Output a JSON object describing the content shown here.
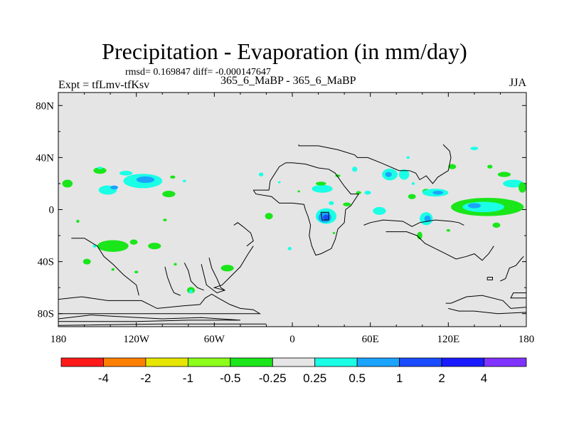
{
  "header": {
    "title": "Precipitation - Evaporation (in mm/day)",
    "stats": "rmsd= 0.169847 diff= -0.000147647",
    "experiment": "Expt = tfLmv-tfKsv",
    "case": "365_6_MaBP - 365_6_MaBP",
    "season": "JJA"
  },
  "colors": {
    "background": "#e5e5e5",
    "coast": "#000000"
  },
  "chart_data": {
    "type": "heatmap",
    "title": "Precipitation - Evaporation (in mm/day)",
    "xlim": [
      -180,
      180
    ],
    "ylim": [
      -90,
      90
    ],
    "x_ticks": [
      {
        "value": -180,
        "label": "180"
      },
      {
        "value": -120,
        "label": "120W"
      },
      {
        "value": -60,
        "label": "60W"
      },
      {
        "value": 0,
        "label": "0"
      },
      {
        "value": 60,
        "label": "60E"
      },
      {
        "value": 120,
        "label": "120E"
      },
      {
        "value": 180,
        "label": "180"
      }
    ],
    "y_ticks": [
      {
        "value": 80,
        "label": "80N"
      },
      {
        "value": 40,
        "label": "40N"
      },
      {
        "value": 0,
        "label": "0"
      },
      {
        "value": -40,
        "label": "40S"
      },
      {
        "value": -80,
        "label": "80S"
      }
    ],
    "colorbar": {
      "colors": [
        "#ff1a1a",
        "#ff8000",
        "#e6e600",
        "#8cff1a",
        "#1ae61a",
        "#e5e5e5",
        "#1affe6",
        "#1aa3ff",
        "#1a4cff",
        "#1a1aff",
        "#8033ff"
      ],
      "labels": [
        "-4",
        "-2",
        "-1",
        "-0.5",
        "-0.25",
        "0.25",
        "0.5",
        "1",
        "2",
        "4"
      ]
    },
    "blobs": [
      {
        "lon": -173,
        "lat": 20,
        "rx": 4,
        "ry": 3,
        "color": "#1ae61a"
      },
      {
        "lon": -165,
        "lat": -9,
        "rx": 1.2,
        "ry": 1.2,
        "color": "#1ae61a"
      },
      {
        "lon": -148,
        "lat": 30,
        "rx": 5,
        "ry": 2.5,
        "color": "#1ae61a"
      },
      {
        "lon": -148,
        "lat": 32,
        "rx": 2,
        "ry": 1,
        "color": "#1affe6"
      },
      {
        "lon": -152,
        "lat": -28,
        "rx": 1.5,
        "ry": 1.2,
        "color": "#1affe6"
      },
      {
        "lon": -158,
        "lat": -40,
        "rx": 3,
        "ry": 2.2,
        "color": "#1ae61a"
      },
      {
        "lon": -142,
        "lat": 15,
        "rx": 7,
        "ry": 3.5,
        "color": "#1affe6"
      },
      {
        "lon": -137,
        "lat": 17,
        "rx": 3,
        "ry": 1.5,
        "color": "#1aa3ff"
      },
      {
        "lon": -115,
        "lat": 22,
        "rx": 15,
        "ry": 5.5,
        "color": "#1affe6"
      },
      {
        "lon": -113,
        "lat": 23,
        "rx": 7,
        "ry": 2.5,
        "color": "#1aa3ff"
      },
      {
        "lon": -128,
        "lat": 28,
        "rx": 5,
        "ry": 1.8,
        "color": "#1affe6"
      },
      {
        "lon": -95,
        "lat": 12,
        "rx": 5,
        "ry": 2.5,
        "color": "#1ae61a"
      },
      {
        "lon": -92,
        "lat": 25,
        "rx": 2,
        "ry": 1.2,
        "color": "#1ae61a"
      },
      {
        "lon": -83,
        "lat": 22,
        "rx": 1.3,
        "ry": 1,
        "color": "#1affe6"
      },
      {
        "lon": -98,
        "lat": -8,
        "rx": 1.5,
        "ry": 1,
        "color": "#1ae61a"
      },
      {
        "lon": -138,
        "lat": -28,
        "rx": 12,
        "ry": 4.5,
        "color": "#1ae61a"
      },
      {
        "lon": -122,
        "lat": -25,
        "rx": 3,
        "ry": 2,
        "color": "#1ae61a"
      },
      {
        "lon": -106,
        "lat": -28,
        "rx": 5,
        "ry": 2.5,
        "color": "#1ae61a"
      },
      {
        "lon": -120,
        "lat": -48,
        "rx": 1.5,
        "ry": 1,
        "color": "#1ae61a"
      },
      {
        "lon": -138,
        "lat": -46,
        "rx": 1.2,
        "ry": 1,
        "color": "#1ae61a"
      },
      {
        "lon": -90,
        "lat": -42,
        "rx": 1.2,
        "ry": 1,
        "color": "#1ae61a"
      },
      {
        "lon": -50,
        "lat": -45,
        "rx": 5,
        "ry": 2.5,
        "color": "#1ae61a"
      },
      {
        "lon": -78,
        "lat": -62,
        "rx": 3,
        "ry": 2.5,
        "color": "#1ae61a"
      },
      {
        "lon": -78,
        "lat": -63,
        "rx": 1.5,
        "ry": 1.5,
        "color": "#1affe6"
      },
      {
        "lon": -18,
        "lat": -5,
        "rx": 3,
        "ry": 2.5,
        "color": "#1ae61a"
      },
      {
        "lon": -2,
        "lat": -30,
        "rx": 1.5,
        "ry": 1.3,
        "color": "#1affe6"
      },
      {
        "lon": -24,
        "lat": 27,
        "rx": 1.8,
        "ry": 1.5,
        "color": "#1affe6"
      },
      {
        "lon": -10,
        "lat": 21,
        "rx": 1,
        "ry": 0.8,
        "color": "#1affe6"
      },
      {
        "lon": 5,
        "lat": 14,
        "rx": 1,
        "ry": 0.8,
        "color": "#1ae61a"
      },
      {
        "lon": 23,
        "lat": 16,
        "rx": 8,
        "ry": 3,
        "color": "#1affe6"
      },
      {
        "lon": 22,
        "lat": 20,
        "rx": 4,
        "ry": 1.5,
        "color": "#1ae61a"
      },
      {
        "lon": 26,
        "lat": -5,
        "rx": 8,
        "ry": 6,
        "color": "#1affe6"
      },
      {
        "lon": 25,
        "lat": -6,
        "rx": 5,
        "ry": 4,
        "color": "#1aa3ff"
      },
      {
        "lon": 26,
        "lat": -6,
        "rx": 2.5,
        "ry": 2,
        "color": "#1a4cff"
      },
      {
        "lon": 30,
        "lat": 5,
        "rx": 2,
        "ry": 1.5,
        "color": "#1affe6"
      },
      {
        "lon": 32,
        "lat": -18,
        "rx": 1,
        "ry": 0.8,
        "color": "#1ae61a"
      },
      {
        "lon": 35,
        "lat": 26,
        "rx": 2,
        "ry": 1,
        "color": "#1ae61a"
      },
      {
        "lon": 42,
        "lat": 4,
        "rx": 3,
        "ry": 1.5,
        "color": "#1ae61a"
      },
      {
        "lon": 51,
        "lat": 13,
        "rx": 2,
        "ry": 1.2,
        "color": "#1ae61a"
      },
      {
        "lon": 58,
        "lat": 13,
        "rx": 2.5,
        "ry": 1.5,
        "color": "#1affe6"
      },
      {
        "lon": 48,
        "lat": 31,
        "rx": 2,
        "ry": 2,
        "color": "#1affe6"
      },
      {
        "lon": 67,
        "lat": -1,
        "rx": 5,
        "ry": 3,
        "color": "#1affe6"
      },
      {
        "lon": 75,
        "lat": 27,
        "rx": 6,
        "ry": 4.5,
        "color": "#1affe6"
      },
      {
        "lon": 74,
        "lat": 27,
        "rx": 2.5,
        "ry": 2,
        "color": "#1aa3ff"
      },
      {
        "lon": 86,
        "lat": 27,
        "rx": 4,
        "ry": 4,
        "color": "#1affe6"
      },
      {
        "lon": 89,
        "lat": 40,
        "rx": 1.2,
        "ry": 1,
        "color": "#1affe6"
      },
      {
        "lon": 93,
        "lat": 20,
        "rx": 1.2,
        "ry": 1,
        "color": "#1affe6"
      },
      {
        "lon": 92,
        "lat": 10,
        "rx": 3,
        "ry": 2,
        "color": "#1ae61a"
      },
      {
        "lon": 103,
        "lat": 14,
        "rx": 3,
        "ry": 2,
        "color": "#1ae61a"
      },
      {
        "lon": 110,
        "lat": 13,
        "rx": 10,
        "ry": 3,
        "color": "#1affe6"
      },
      {
        "lon": 112,
        "lat": 13,
        "rx": 4,
        "ry": 1.5,
        "color": "#1aa3ff"
      },
      {
        "lon": 103,
        "lat": -7,
        "rx": 5,
        "ry": 5,
        "color": "#1affe6"
      },
      {
        "lon": 104,
        "lat": -7,
        "rx": 2.5,
        "ry": 2.5,
        "color": "#1aa3ff"
      },
      {
        "lon": 98,
        "lat": -20,
        "rx": 2,
        "ry": 3,
        "color": "#1ae61a"
      },
      {
        "lon": 123,
        "lat": 33,
        "rx": 3,
        "ry": 2,
        "color": "#1ae61a"
      },
      {
        "lon": 140,
        "lat": 47,
        "rx": 3,
        "ry": 1.3,
        "color": "#1affe6"
      },
      {
        "lon": 152,
        "lat": 33,
        "rx": 2,
        "ry": 1.5,
        "color": "#1ae61a"
      },
      {
        "lon": 163,
        "lat": 27,
        "rx": 5,
        "ry": 2,
        "color": "#1ae61a"
      },
      {
        "lon": 170,
        "lat": 20,
        "rx": 8,
        "ry": 3,
        "color": "#1affe6"
      },
      {
        "lon": 150,
        "lat": 2,
        "rx": 28,
        "ry": 7,
        "color": "#1ae61a"
      },
      {
        "lon": 147,
        "lat": 2,
        "rx": 16,
        "ry": 4,
        "color": "#1affe6"
      },
      {
        "lon": 140,
        "lat": 3,
        "rx": 5,
        "ry": 2,
        "color": "#1aa3ff"
      },
      {
        "lon": 177,
        "lat": 17,
        "rx": 3,
        "ry": 4,
        "color": "#1ae61a"
      },
      {
        "lon": 157,
        "lat": -12,
        "rx": 3,
        "ry": 2,
        "color": "#1ae61a"
      },
      {
        "lon": 120,
        "lat": -16,
        "rx": 1.5,
        "ry": 1,
        "color": "#1ae61a"
      }
    ],
    "coastlines": [
      [
        [
          -180,
          -69
        ],
        [
          -162,
          -67
        ],
        [
          -142,
          -70
        ],
        [
          -116,
          -70
        ],
        [
          -104,
          -76
        ],
        [
          -84,
          -74
        ],
        [
          -71,
          -73
        ],
        [
          -67,
          -68
        ],
        [
          -62,
          -65
        ],
        [
          -57,
          -68
        ],
        [
          -48,
          -73
        ],
        [
          -40,
          -76
        ],
        [
          -30,
          -77
        ],
        [
          -25,
          -80
        ],
        [
          -180,
          -80
        ]
      ],
      [
        [
          -180,
          -84
        ],
        [
          -155,
          -81
        ],
        [
          -138,
          -82
        ],
        [
          -100,
          -84
        ],
        [
          -70,
          -83
        ],
        [
          -40,
          -85
        ],
        [
          -80,
          -85
        ],
        [
          -120,
          -86
        ],
        [
          -180,
          -86
        ]
      ],
      [
        [
          -180,
          -89
        ],
        [
          -100,
          -88
        ],
        [
          -20,
          -88
        ]
      ],
      [
        [
          5,
          50
        ],
        [
          5,
          49
        ],
        [
          20,
          49
        ],
        [
          35,
          46
        ],
        [
          48,
          42
        ],
        [
          50,
          40
        ],
        [
          58,
          40
        ],
        [
          68,
          36
        ],
        [
          75,
          33
        ],
        [
          82,
          30
        ],
        [
          90,
          30
        ],
        [
          95,
          28
        ],
        [
          98,
          23
        ],
        [
          103,
          26
        ],
        [
          108,
          20
        ],
        [
          112,
          25
        ],
        [
          120,
          30
        ],
        [
          122,
          40
        ],
        [
          121,
          45
        ],
        [
          116,
          50
        ]
      ],
      [
        [
          -30,
          15
        ],
        [
          -28,
          12
        ],
        [
          -16,
          10
        ],
        [
          -10,
          5
        ],
        [
          0,
          5
        ],
        [
          9,
          4
        ],
        [
          10,
          0
        ],
        [
          12,
          -5
        ],
        [
          14,
          -12
        ],
        [
          13,
          -20
        ],
        [
          15,
          -28
        ],
        [
          18,
          -35
        ],
        [
          22,
          -34
        ],
        [
          30,
          -30
        ],
        [
          33,
          -23
        ],
        [
          35,
          -15
        ],
        [
          40,
          -10
        ],
        [
          41,
          0
        ],
        [
          45,
          3
        ],
        [
          51,
          12
        ],
        [
          45,
          12
        ],
        [
          40,
          18
        ],
        [
          33,
          28
        ],
        [
          28,
          31
        ],
        [
          20,
          32
        ],
        [
          10,
          35
        ],
        [
          0,
          36
        ],
        [
          -5,
          36
        ],
        [
          -10,
          33
        ],
        [
          -17,
          22
        ],
        [
          -18,
          15
        ],
        [
          -30,
          15
        ]
      ],
      [
        [
          22,
          -2
        ],
        [
          23,
          -8
        ],
        [
          28,
          -8
        ],
        [
          28,
          -2
        ],
        [
          22,
          -2
        ]
      ],
      [
        [
          -170,
          -22
        ],
        [
          -160,
          -22
        ],
        [
          -150,
          -28
        ],
        [
          -145,
          -36
        ],
        [
          -138,
          -42
        ],
        [
          -130,
          -50
        ],
        [
          -120,
          -58
        ],
        [
          -118,
          -66
        ]
      ],
      [
        [
          -98,
          -44
        ],
        [
          -96,
          -52
        ],
        [
          -93,
          -60
        ],
        [
          -91,
          -64
        ],
        [
          -86,
          -66
        ]
      ],
      [
        [
          -83,
          -41
        ],
        [
          -80,
          -47
        ],
        [
          -78,
          -55
        ],
        [
          -73,
          -60
        ],
        [
          -68,
          -62
        ]
      ],
      [
        [
          -64,
          -37
        ],
        [
          -62,
          -45
        ],
        [
          -58,
          -53
        ],
        [
          -55,
          -60
        ],
        [
          -52,
          -62
        ],
        [
          -58,
          -64
        ],
        [
          -66,
          -58
        ],
        [
          -68,
          -50
        ],
        [
          -70,
          -42
        ]
      ],
      [
        [
          -30,
          -28
        ],
        [
          -34,
          -34
        ],
        [
          -40,
          -44
        ],
        [
          -48,
          -52
        ],
        [
          -54,
          -58
        ],
        [
          -60,
          -60
        ],
        [
          -52,
          -62
        ]
      ],
      [
        [
          -45,
          -12
        ],
        [
          -42,
          -10
        ],
        [
          -38,
          -13
        ],
        [
          -32,
          -18
        ],
        [
          -30,
          -24
        ],
        [
          -35,
          -28
        ]
      ],
      [
        [
          55,
          -12
        ],
        [
          60,
          -10
        ],
        [
          70,
          -8
        ],
        [
          85,
          -9
        ],
        [
          92,
          -13
        ],
        [
          98,
          -10
        ],
        [
          110,
          -8
        ],
        [
          122,
          -9
        ],
        [
          128,
          -10
        ],
        [
          132,
          -12
        ]
      ],
      [
        [
          72,
          -17
        ],
        [
          80,
          -17
        ],
        [
          88,
          -17
        ],
        [
          96,
          -20
        ],
        [
          102,
          -26
        ],
        [
          110,
          -30
        ],
        [
          118,
          -34
        ],
        [
          126,
          -38
        ],
        [
          134,
          -36
        ],
        [
          140,
          -34
        ],
        [
          146,
          -39
        ],
        [
          151,
          -34
        ],
        [
          155,
          -28
        ]
      ],
      [
        [
          118,
          -72
        ],
        [
          122,
          -72
        ],
        [
          134,
          -67
        ],
        [
          146,
          -66
        ],
        [
          162,
          -70
        ],
        [
          168,
          -76
        ],
        [
          180,
          -75
        ]
      ],
      [
        [
          120,
          -76
        ],
        [
          128,
          -78
        ],
        [
          140,
          -78
        ],
        [
          158,
          -80
        ],
        [
          180,
          -79
        ]
      ],
      [
        [
          160,
          -55
        ],
        [
          164,
          -53
        ],
        [
          167,
          -45
        ],
        [
          172,
          -43
        ],
        [
          176,
          -38
        ],
        [
          178,
          -36
        ]
      ],
      [
        [
          150,
          -52
        ],
        [
          154,
          -52
        ],
        [
          154,
          -54
        ],
        [
          150,
          -54
        ],
        [
          150,
          -52
        ]
      ],
      [
        [
          180,
          -64
        ],
        [
          170,
          -64
        ],
        [
          168,
          -68
        ],
        [
          180,
          -68
        ]
      ]
    ]
  }
}
